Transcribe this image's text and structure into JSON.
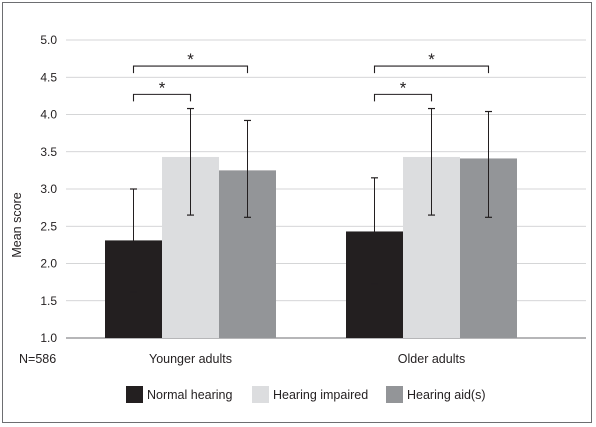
{
  "chart_data": {
    "type": "bar",
    "title": "",
    "xlabel": "",
    "ylabel": "Mean score",
    "n_label": "N=586",
    "categories": [
      "Younger adults",
      "Older adults"
    ],
    "ylim": [
      1.0,
      5.0
    ],
    "yticks": [
      "1.0",
      "1.5",
      "2.0",
      "2.5",
      "3.0",
      "3.5",
      "4.0",
      "4.5",
      "5.0"
    ],
    "grid": true,
    "legend_position": "bottom",
    "series": [
      {
        "name": "Normal hearing",
        "color": "#231f20",
        "values": [
          2.31,
          2.43
        ],
        "error": [
          [
            1.62,
            3.0
          ],
          [
            1.72,
            3.15
          ]
        ]
      },
      {
        "name": "Hearing impaired",
        "color": "#dcdddf",
        "values": [
          3.43,
          3.43
        ],
        "error": [
          [
            2.65,
            4.08
          ],
          [
            2.65,
            4.08
          ]
        ]
      },
      {
        "name": "Hearing aid(s)",
        "color": "#939598",
        "values": [
          3.25,
          3.41
        ],
        "error": [
          [
            2.62,
            3.92
          ],
          [
            2.62,
            4.04
          ]
        ]
      }
    ],
    "significance": [
      {
        "category": 0,
        "from_series": 0,
        "to_series": 2,
        "y": 4.65,
        "label": "*"
      },
      {
        "category": 0,
        "from_series": 0,
        "to_series": 1,
        "y": 4.27,
        "label": "*"
      },
      {
        "category": 1,
        "from_series": 0,
        "to_series": 2,
        "y": 4.65,
        "label": "*"
      },
      {
        "category": 1,
        "from_series": 0,
        "to_series": 1,
        "y": 4.27,
        "label": "*"
      }
    ]
  }
}
